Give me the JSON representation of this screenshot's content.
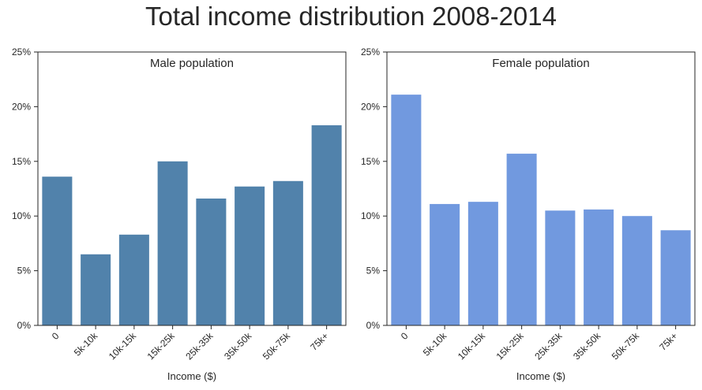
{
  "title": "Total income distribution 2008-2014",
  "chart_data": [
    {
      "type": "bar",
      "title": "Male population",
      "xlabel": "Income ($)",
      "ylabel": "",
      "categories": [
        "0",
        "5k-10k",
        "10k-15k",
        "15k-25k",
        "25k-35k",
        "35k-50k",
        "50k-75k",
        "75k+"
      ],
      "values": [
        13.6,
        6.5,
        8.3,
        15.0,
        11.6,
        12.7,
        13.2,
        18.3
      ],
      "ylim": [
        0,
        25
      ],
      "yticks": [
        0,
        5,
        10,
        15,
        20,
        25
      ],
      "ytick_labels": [
        "0%",
        "5%",
        "10%",
        "15%",
        "20%",
        "25%"
      ],
      "color": "#5182ab",
      "grid": false
    },
    {
      "type": "bar",
      "title": "Female population",
      "xlabel": "Income ($)",
      "ylabel": "",
      "categories": [
        "0",
        "5k-10k",
        "10k-15k",
        "15k-25k",
        "25k-35k",
        "35k-50k",
        "50k-75k",
        "75k+"
      ],
      "values": [
        21.1,
        11.1,
        11.3,
        15.7,
        10.5,
        10.6,
        10.0,
        8.7
      ],
      "ylim": [
        0,
        25
      ],
      "yticks": [
        0,
        5,
        10,
        15,
        20,
        25
      ],
      "ytick_labels": [
        "0%",
        "5%",
        "10%",
        "15%",
        "20%",
        "25%"
      ],
      "color": "#7199df",
      "grid": false
    }
  ]
}
